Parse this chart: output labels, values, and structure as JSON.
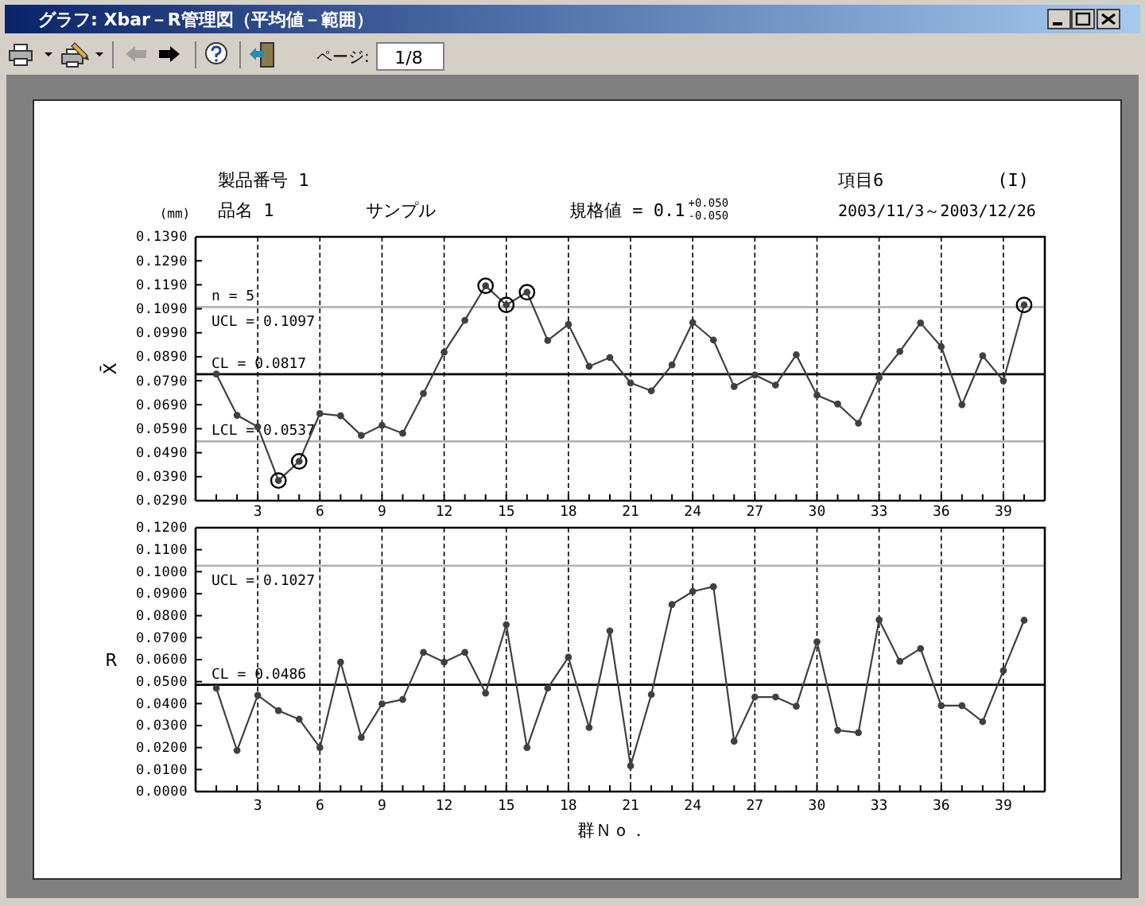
{
  "chart_data": [
    {
      "type": "line",
      "title": "グラフ: Xbar－R管理図（平均値－範囲）",
      "ylabel": "X̄",
      "annotations": [
        "(mm)",
        "製品番号 1",
        "品名 1",
        "サンプル",
        "規格値 = 0.1$^{+0.050}$$_{-0.050}$",
        "項目6",
        "(I)",
        "2003/11/3～2003/12/26",
        "n = 5",
        "ページ:",
        "1/8"
      ],
      "x": [
        1,
        2,
        3,
        4,
        5,
        6,
        7,
        8,
        9,
        10,
        11,
        12,
        13,
        14,
        15,
        16,
        17,
        18,
        19,
        20,
        21,
        22,
        23,
        24,
        25,
        26,
        27,
        28,
        29,
        30,
        31,
        32,
        33,
        34,
        35,
        36,
        37,
        38,
        39,
        40
      ],
      "series": [
        {
          "color": "#404040",
          "values": [
            0.0818,
            0.0646,
            0.0598,
            0.0374,
            0.0454,
            0.0653,
            0.0644,
            0.0562,
            0.0604,
            0.0571,
            0.0737,
            0.0909,
            0.1042,
            0.1186,
            0.1106,
            0.1159,
            0.0958,
            0.1025,
            0.085,
            0.0887,
            0.0781,
            0.0748,
            0.0856,
            0.1033,
            0.096,
            0.0766,
            0.0814,
            0.0772,
            0.0898,
            0.073,
            0.0693,
            0.0613,
            0.0803,
            0.0912,
            0.1031,
            0.0932,
            0.069,
            0.0894,
            0.079,
            0.1106
          ]
        },
        {
          "type": "scatter",
          "color": "#000000",
          "x": [
            4,
            5,
            14,
            15,
            16,
            40
          ],
          "values": [
            0.0374,
            0.0454,
            0.1186,
            0.1106,
            0.1159,
            0.1106
          ]
        }
      ],
      "xlim": [
        0,
        41
      ],
      "xticks": [
        {
          "value": 1,
          "label": null
        },
        {
          "value": 2,
          "label": null
        },
        3,
        {
          "value": 4,
          "label": null
        },
        {
          "value": 5,
          "label": null
        },
        6,
        {
          "value": 7,
          "label": null
        },
        {
          "value": 8,
          "label": null
        },
        9,
        {
          "value": 10,
          "label": null
        },
        {
          "value": 11,
          "label": null
        },
        12,
        {
          "value": 13,
          "label": null
        },
        {
          "value": 14,
          "label": null
        },
        15,
        {
          "value": 16,
          "label": null
        },
        {
          "value": 17,
          "label": null
        },
        18,
        {
          "value": 19,
          "label": null
        },
        {
          "value": 20,
          "label": null
        },
        21,
        {
          "value": 22,
          "label": null
        },
        {
          "value": 23,
          "label": null
        },
        24,
        {
          "value": 25,
          "label": null
        },
        {
          "value": 26,
          "label": null
        },
        27,
        {
          "value": 28,
          "label": null
        },
        {
          "value": 29,
          "label": null
        },
        30,
        {
          "value": 31,
          "label": null
        },
        {
          "value": 32,
          "label": null
        },
        33,
        {
          "value": 34,
          "label": null
        },
        {
          "value": 35,
          "label": null
        },
        36,
        {
          "value": 37,
          "label": null
        },
        {
          "value": 38,
          "label": null
        },
        39,
        {
          "value": 40,
          "label": null
        }
      ],
      "ylim": [
        0.029,
        0.139
      ],
      "yticks": [
        {
          "value": 0.029,
          "label": "0.0290"
        },
        {
          "value": 0.039,
          "label": "0.0390"
        },
        {
          "value": 0.049,
          "label": "0.0490"
        },
        {
          "value": 0.059,
          "label": "0.0590"
        },
        {
          "value": 0.069,
          "label": "0.0690"
        },
        {
          "value": 0.079,
          "label": "0.0790"
        },
        {
          "value": 0.089,
          "label": "0.0890"
        },
        {
          "value": 0.099,
          "label": "0.0990"
        },
        {
          "value": 0.109,
          "label": "0.1090"
        },
        {
          "value": 0.119,
          "label": "0.1190"
        },
        {
          "value": 0.129,
          "label": "0.1290"
        },
        {
          "value": 0.139,
          "label": "0.1390"
        }
      ],
      "grid": "x",
      "marker": "circle",
      "line_style": "solid",
      "ref_lines": [
        {
          "axis": "y",
          "value": 0.1097,
          "label": "UCL = 0.1097",
          "color": "#b4b4b4"
        },
        {
          "axis": "y",
          "value": 0.0817,
          "label": "CL = 0.0817",
          "color": "#000000"
        },
        {
          "axis": "y",
          "value": 0.0537,
          "label": "LCL = 0.0537",
          "color": "#b4b4b4"
        }
      ]
    },
    {
      "type": "line",
      "ylabel": "R",
      "xlabel": "群Ｎｏ．",
      "x": [
        1,
        2,
        3,
        4,
        5,
        6,
        7,
        8,
        9,
        10,
        11,
        12,
        13,
        14,
        15,
        16,
        17,
        18,
        19,
        20,
        21,
        22,
        23,
        24,
        25,
        26,
        27,
        28,
        29,
        30,
        31,
        32,
        33,
        34,
        35,
        36,
        37,
        38,
        39,
        40
      ],
      "series": [
        {
          "color": "#404040",
          "values": [
            0.047,
            0.0187,
            0.0438,
            0.0368,
            0.0329,
            0.02,
            0.0589,
            0.0246,
            0.0399,
            0.0419,
            0.0633,
            0.0589,
            0.0633,
            0.0448,
            0.0759,
            0.02,
            0.047,
            0.0611,
            0.0291,
            0.0731,
            0.0117,
            0.0441,
            0.0851,
            0.091,
            0.0932,
            0.0229,
            0.043,
            0.043,
            0.0388,
            0.0681,
            0.0279,
            0.0268,
            0.0781,
            0.0592,
            0.065,
            0.0391,
            0.0391,
            0.0318,
            0.055,
            0.0779
          ]
        }
      ],
      "xlim": [
        0,
        41
      ],
      "xticks": [
        {
          "value": 1,
          "label": null
        },
        {
          "value": 2,
          "label": null
        },
        3,
        {
          "value": 4,
          "label": null
        },
        {
          "value": 5,
          "label": null
        },
        6,
        {
          "value": 7,
          "label": null
        },
        {
          "value": 8,
          "label": null
        },
        9,
        {
          "value": 10,
          "label": null
        },
        {
          "value": 11,
          "label": null
        },
        12,
        {
          "value": 13,
          "label": null
        },
        {
          "value": 14,
          "label": null
        },
        15,
        {
          "value": 16,
          "label": null
        },
        {
          "value": 17,
          "label": null
        },
        18,
        {
          "value": 19,
          "label": null
        },
        {
          "value": 20,
          "label": null
        },
        21,
        {
          "value": 22,
          "label": null
        },
        {
          "value": 23,
          "label": null
        },
        24,
        {
          "value": 25,
          "label": null
        },
        {
          "value": 26,
          "label": null
        },
        27,
        {
          "value": 28,
          "label": null
        },
        {
          "value": 29,
          "label": null
        },
        30,
        {
          "value": 31,
          "label": null
        },
        {
          "value": 32,
          "label": null
        },
        33,
        {
          "value": 34,
          "label": null
        },
        {
          "value": 35,
          "label": null
        },
        36,
        {
          "value": 37,
          "label": null
        },
        {
          "value": 38,
          "label": null
        },
        39,
        {
          "value": 40,
          "label": null
        }
      ],
      "ylim": [
        0,
        0.12
      ],
      "yticks": [
        {
          "value": 0,
          "label": "0.0000"
        },
        {
          "value": 0.01,
          "label": "0.0100"
        },
        {
          "value": 0.02,
          "label": "0.0200"
        },
        {
          "value": 0.03,
          "label": "0.0300"
        },
        {
          "value": 0.04,
          "label": "0.0400"
        },
        {
          "value": 0.05,
          "label": "0.0500"
        },
        {
          "value": 0.06,
          "label": "0.0600"
        },
        {
          "value": 0.07,
          "label": "0.0700"
        },
        {
          "value": 0.08,
          "label": "0.0800"
        },
        {
          "value": 0.09,
          "label": "0.0900"
        },
        {
          "value": 0.1,
          "label": "0.1000"
        },
        {
          "value": 0.11,
          "label": "0.1100"
        },
        {
          "value": 0.12,
          "label": "0.1200"
        }
      ],
      "grid": "x",
      "marker": "circle",
      "line_style": "solid",
      "ref_lines": [
        {
          "axis": "y",
          "value": 0.1027,
          "label": "UCL = 0.1027",
          "color": "#b4b4b4"
        },
        {
          "axis": "y",
          "value": 0.0486,
          "label": "CL = 0.0486",
          "color": "#000000"
        }
      ]
    }
  ]
}
